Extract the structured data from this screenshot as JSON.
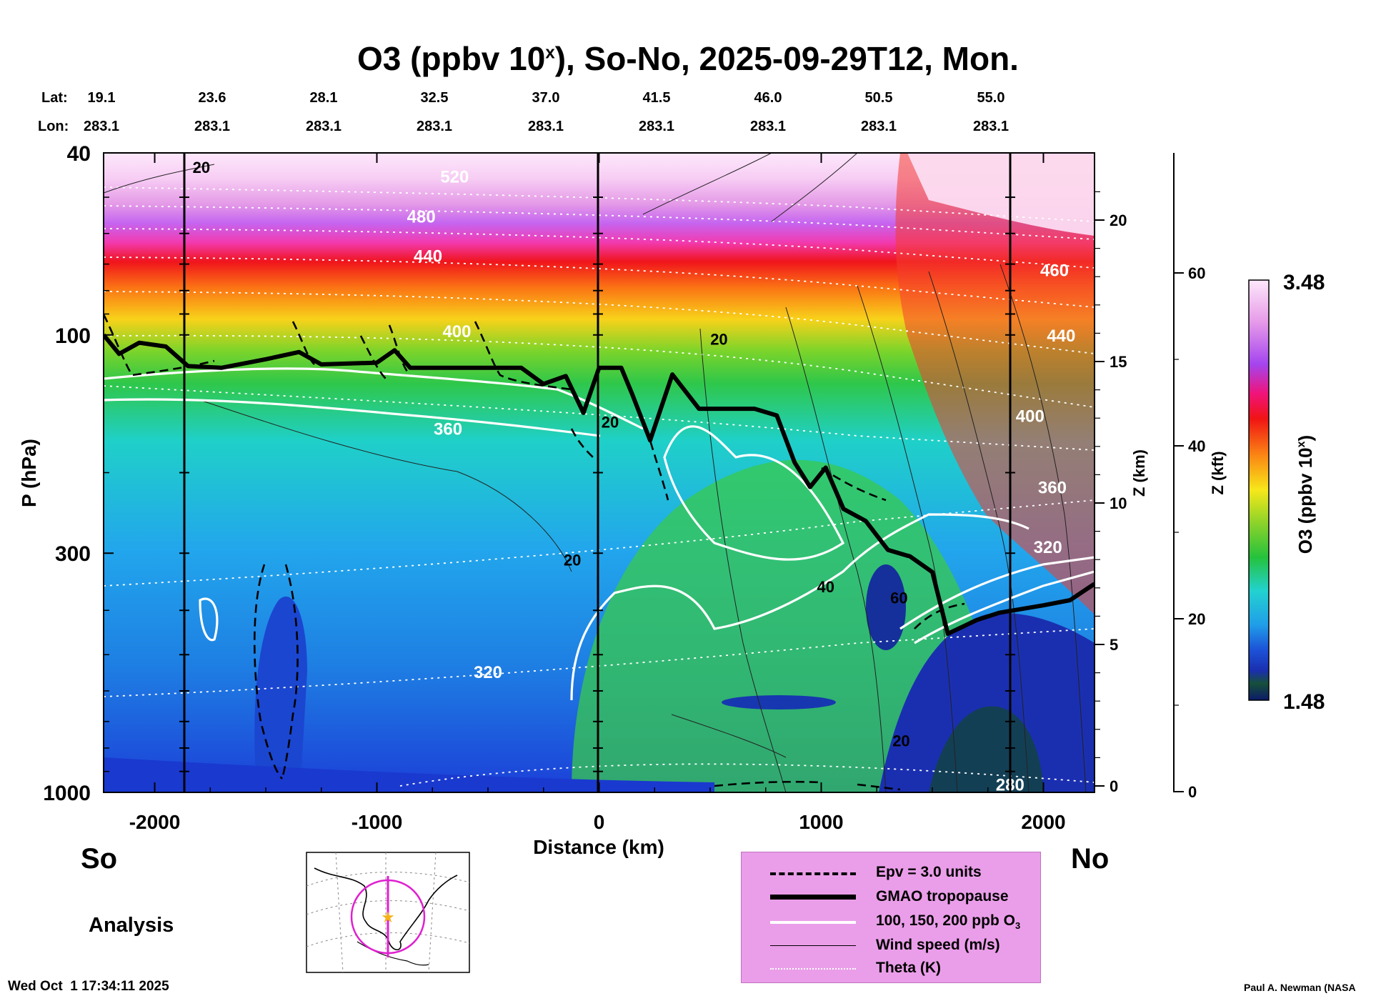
{
  "title": "O3 (ppbv 10",
  "title_sup": "x",
  "title_rest": "), So-No, 2025-09-29T12, Mon.",
  "header": {
    "lat_label": "Lat:",
    "lon_label": "Lon:",
    "lats": [
      "19.1",
      "23.6",
      "28.1",
      "32.5",
      "37.0",
      "41.5",
      "46.0",
      "50.5",
      "55.0"
    ],
    "lons": [
      "283.1",
      "283.1",
      "283.1",
      "283.1",
      "283.1",
      "283.1",
      "283.1",
      "283.1",
      "283.1"
    ]
  },
  "chart_data": {
    "type": "heatmap",
    "xlabel": "Distance (km)",
    "ylabel": "P (hPa)",
    "xlim": [
      -2230,
      2230
    ],
    "ylim": [
      1000,
      40
    ],
    "x_ticks": [
      -2000,
      -1000,
      0,
      1000,
      2000
    ],
    "x_tick_labels": [
      "-2000",
      "-1000",
      "0",
      "1000",
      "2000"
    ],
    "y_ticks": [
      40,
      100,
      300,
      1000
    ],
    "y_tick_labels": [
      "40",
      "100",
      "300",
      "1000"
    ],
    "z_km_ticks": [
      0,
      5,
      10,
      15,
      20
    ],
    "z_km_label": "Z (km)",
    "z_kft_ticks": [
      0,
      20,
      40,
      60
    ],
    "z_kft_label": "Z (kft)",
    "colorbar": {
      "min": 1.48,
      "max": 3.48,
      "min_label": "1.48",
      "max_label": "3.48",
      "label": "O3 (ppbv 10",
      "label_sup": "x",
      "label_rest": ")"
    },
    "theta_labels": [
      {
        "text": "520",
        "x": -650,
        "p": 45
      },
      {
        "text": "480",
        "x": -800,
        "p": 55
      },
      {
        "text": "440",
        "x": -770,
        "p": 67
      },
      {
        "text": "400",
        "x": -640,
        "p": 98
      },
      {
        "text": "360",
        "x": -680,
        "p": 160
      },
      {
        "text": "320",
        "x": -500,
        "p": 545
      },
      {
        "text": "460",
        "x": 2050,
        "p": 72
      },
      {
        "text": "440",
        "x": 2080,
        "p": 100
      },
      {
        "text": "400",
        "x": 1940,
        "p": 150
      },
      {
        "text": "360",
        "x": 2040,
        "p": 215
      },
      {
        "text": "320",
        "x": 2020,
        "p": 290
      },
      {
        "text": "280",
        "x": 1850,
        "p": 960
      }
    ],
    "wind_labels": [
      {
        "text": "20",
        "x": -1790,
        "p": 43
      },
      {
        "text": "20",
        "x": 540,
        "p": 102
      },
      {
        "text": "20",
        "x": 50,
        "p": 155
      },
      {
        "text": "20",
        "x": -120,
        "p": 310
      },
      {
        "text": "40",
        "x": 1020,
        "p": 355
      },
      {
        "text": "60",
        "x": 1350,
        "p": 375
      },
      {
        "text": "20",
        "x": 1360,
        "p": 770
      }
    ],
    "tropopause": [
      [
        -2230,
        100
      ],
      [
        -2160,
        110
      ],
      [
        -2070,
        104
      ],
      [
        -1950,
        106
      ],
      [
        -1850,
        117
      ],
      [
        -1700,
        118
      ],
      [
        -1500,
        113
      ],
      [
        -1350,
        109
      ],
      [
        -1250,
        116
      ],
      [
        -1000,
        115
      ],
      [
        -920,
        108
      ],
      [
        -850,
        118
      ],
      [
        -500,
        118
      ],
      [
        -350,
        118
      ],
      [
        -250,
        128
      ],
      [
        -150,
        123
      ],
      [
        -70,
        148
      ],
      [
        0,
        118
      ],
      [
        100,
        118
      ],
      [
        150,
        135
      ],
      [
        230,
        170
      ],
      [
        330,
        122
      ],
      [
        450,
        145
      ],
      [
        700,
        145
      ],
      [
        800,
        150
      ],
      [
        880,
        190
      ],
      [
        950,
        215
      ],
      [
        1020,
        195
      ],
      [
        1100,
        240
      ],
      [
        1200,
        255
      ],
      [
        1300,
        295
      ],
      [
        1400,
        305
      ],
      [
        1500,
        330
      ],
      [
        1570,
        450
      ],
      [
        1700,
        420
      ],
      [
        1800,
        405
      ],
      [
        2000,
        390
      ],
      [
        2120,
        380
      ],
      [
        2230,
        350
      ]
    ],
    "series": [
      {
        "name": "Epv = 3.0 units",
        "style": "dashed"
      },
      {
        "name": "GMAO tropopause",
        "style": "thick"
      },
      {
        "name": "100, 150, 200 ppb O3",
        "style": "white"
      },
      {
        "name": "Wind speed (m/s)",
        "style": "thin"
      },
      {
        "name": "Theta (K)",
        "style": "dotted"
      }
    ]
  },
  "side_labels": {
    "south": "So",
    "north": "No",
    "analysis": "Analysis"
  },
  "legend": {
    "items": [
      "Epv = 3.0 units",
      "GMAO tropopause",
      "100, 150, 200 ppb O",
      "Wind speed (m/s)",
      "Theta (K)"
    ],
    "o3_sub": "3"
  },
  "footer": {
    "timestamp": "Wed Oct  1 17:34:11 2025",
    "credit": "Paul A. Newman (NASA"
  },
  "colors": {
    "legend_bg": "#ea9ee9",
    "map_circle": "#e020d0",
    "star": "#f5b21a"
  }
}
